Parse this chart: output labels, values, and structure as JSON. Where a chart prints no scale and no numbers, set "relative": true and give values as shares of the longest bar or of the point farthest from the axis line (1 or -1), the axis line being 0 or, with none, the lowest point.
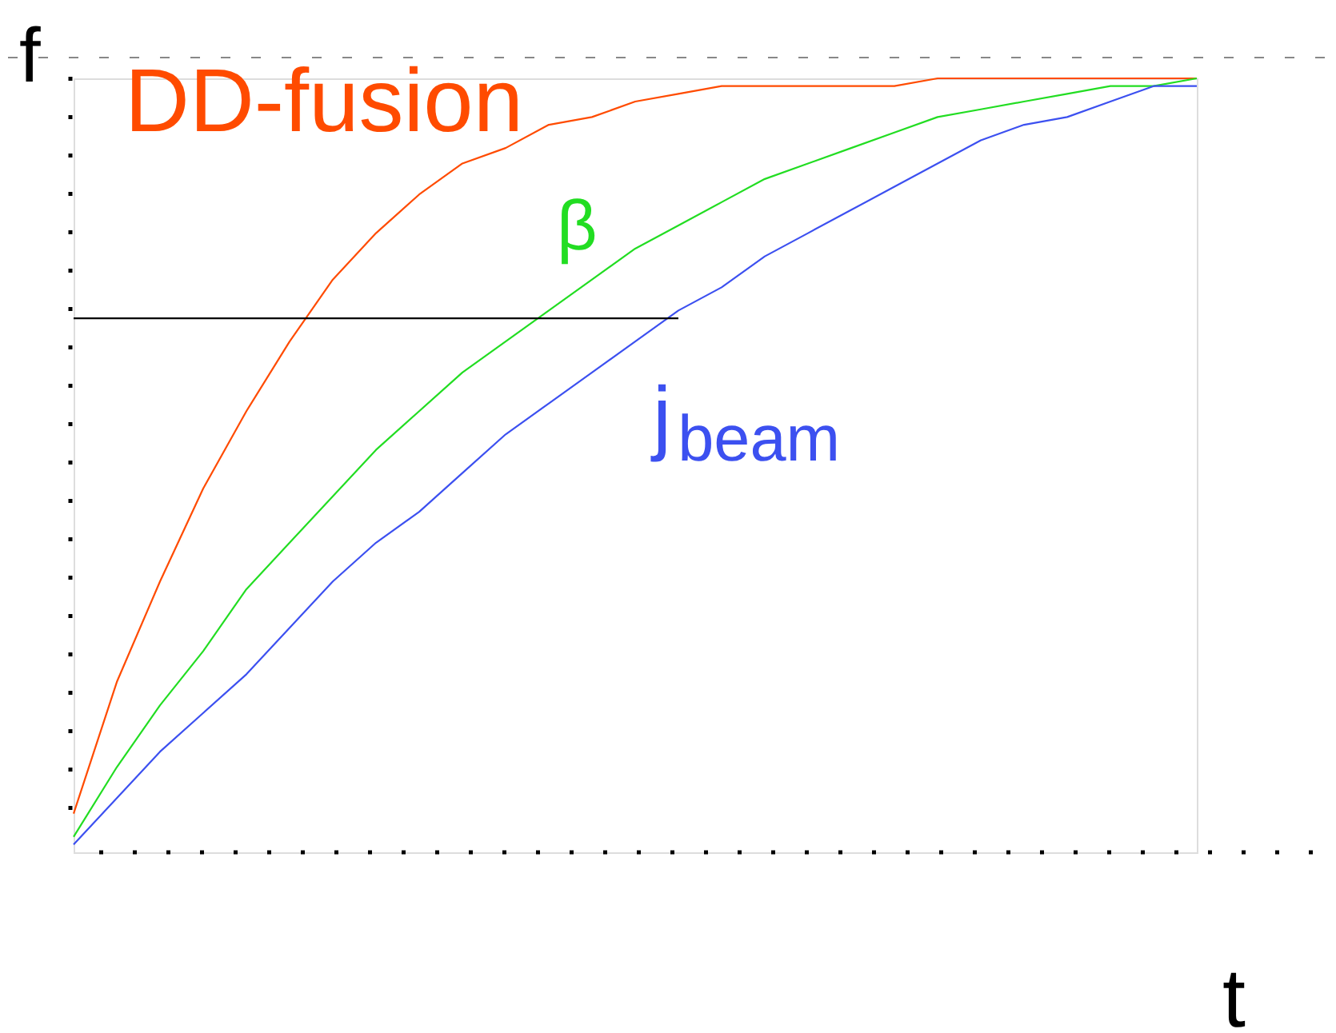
{
  "chart_data": {
    "type": "line",
    "relative": true,
    "xlabel": "t",
    "ylabel": "f",
    "categories": [
      null,
      null,
      null,
      null,
      null,
      null,
      null,
      null,
      null,
      null,
      null,
      null,
      null,
      null,
      null,
      null,
      null,
      null,
      null,
      null,
      null,
      null,
      null,
      null,
      null,
      null,
      null
    ],
    "series": [
      {
        "name": "DD-fusion",
        "color": "#ff4b00",
        "values": [
          0.05,
          0.22,
          0.35,
          0.47,
          0.57,
          0.66,
          0.74,
          0.8,
          0.85,
          0.89,
          0.91,
          0.94,
          0.95,
          0.97,
          0.98,
          0.99,
          0.99,
          0.99,
          0.99,
          0.99,
          1,
          1,
          1,
          1,
          1,
          1,
          1
        ]
      },
      {
        "name": "β",
        "color": "#22dd22",
        "values": [
          0.02,
          0.11,
          0.19,
          0.26,
          0.34,
          0.4,
          0.46,
          0.52,
          0.57,
          0.62,
          0.66,
          0.7,
          0.74,
          0.78,
          0.81,
          0.84,
          0.87,
          0.89,
          0.91,
          0.93,
          0.95,
          0.96,
          0.97,
          0.98,
          0.99,
          0.99,
          1
        ]
      },
      {
        "name": "j$_{beam}$",
        "color": "#3c50f0",
        "values": [
          0.01,
          0.07,
          0.13,
          0.18,
          0.23,
          0.29,
          0.35,
          0.4,
          0.44,
          0.49,
          0.54,
          0.58,
          0.62,
          0.66,
          0.7,
          0.73,
          0.77,
          0.8,
          0.83,
          0.86,
          0.89,
          0.92,
          0.94,
          0.95,
          0.97,
          0.99,
          0.99
        ]
      },
      {
        "color": "#000000",
        "values": [
          0.69,
          0.69,
          0.69,
          0.69,
          0.69,
          0.69,
          0.69,
          0.69,
          0.69,
          0.69,
          0.69,
          0.69,
          0.69,
          0.69,
          0.69,
          null,
          null,
          null,
          null,
          null,
          null,
          null,
          null,
          null,
          null,
          null,
          null
        ]
      }
    ]
  }
}
